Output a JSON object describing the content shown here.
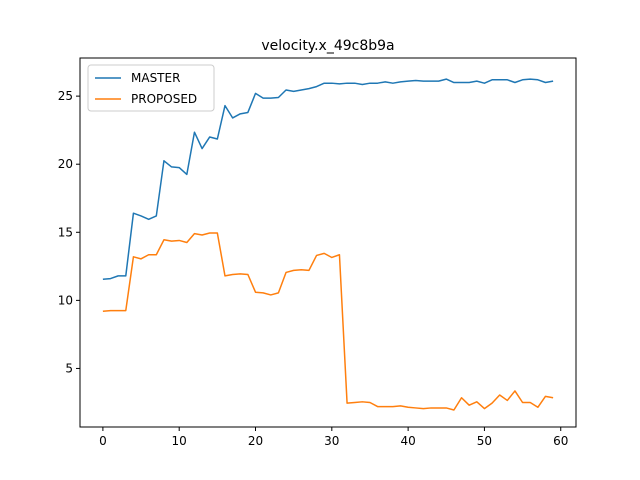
{
  "chart_data": {
    "type": "line",
    "title": "velocity.x_49c8b9a",
    "xlabel": "",
    "ylabel": "",
    "xlim": [
      -3.0,
      62.0
    ],
    "ylim": [
      0.7,
      27.8
    ],
    "xticks": [
      0,
      10,
      20,
      30,
      40,
      50,
      60
    ],
    "yticks": [
      5,
      10,
      15,
      20,
      25
    ],
    "grid": false,
    "legend_position": "upper-left",
    "series": [
      {
        "name": "MASTER",
        "color": "#1f77b4",
        "x": [
          0,
          1,
          2,
          3,
          4,
          5,
          6,
          7,
          8,
          9,
          10,
          11,
          12,
          13,
          14,
          15,
          16,
          17,
          18,
          19,
          20,
          21,
          22,
          23,
          24,
          25,
          26,
          27,
          28,
          29,
          30,
          31,
          32,
          33,
          34,
          35,
          36,
          37,
          38,
          39,
          40,
          41,
          42,
          43,
          44,
          45,
          46,
          47,
          48,
          49,
          50,
          51,
          52,
          53,
          54,
          55,
          56,
          57,
          58,
          59
        ],
        "values": [
          11.55,
          11.6,
          11.8,
          11.8,
          16.4,
          16.2,
          15.95,
          16.2,
          20.25,
          19.8,
          19.75,
          19.25,
          22.35,
          21.15,
          22.0,
          21.85,
          24.3,
          23.4,
          23.7,
          23.8,
          25.2,
          24.85,
          24.85,
          24.9,
          25.45,
          25.35,
          25.45,
          25.55,
          25.7,
          25.95,
          25.95,
          25.9,
          25.95,
          25.95,
          25.85,
          25.95,
          25.95,
          26.05,
          25.95,
          26.05,
          26.1,
          26.15,
          26.1,
          26.1,
          26.1,
          26.25,
          26.0,
          26.0,
          26.0,
          26.1,
          25.95,
          26.2,
          26.2,
          26.2,
          26.0,
          26.2,
          26.25,
          26.2,
          26.0,
          26.1
        ]
      },
      {
        "name": "PROPOSED",
        "color": "#ff7f0e",
        "x": [
          0,
          1,
          2,
          3,
          4,
          5,
          6,
          7,
          8,
          9,
          10,
          11,
          12,
          13,
          14,
          15,
          16,
          17,
          18,
          19,
          20,
          21,
          22,
          23,
          24,
          25,
          26,
          27,
          28,
          29,
          30,
          31,
          32,
          33,
          34,
          35,
          36,
          37,
          38,
          39,
          40,
          41,
          42,
          43,
          44,
          45,
          46,
          47,
          48,
          49,
          50,
          51,
          52,
          53,
          54,
          55,
          56,
          57,
          58,
          59
        ],
        "values": [
          9.2,
          9.25,
          9.25,
          9.25,
          13.2,
          13.05,
          13.35,
          13.35,
          14.45,
          14.35,
          14.4,
          14.25,
          14.9,
          14.8,
          14.95,
          14.95,
          11.8,
          11.9,
          11.95,
          11.9,
          10.6,
          10.55,
          10.4,
          10.55,
          12.05,
          12.2,
          12.25,
          12.2,
          13.3,
          13.45,
          13.15,
          13.35,
          2.45,
          2.5,
          2.55,
          2.5,
          2.2,
          2.2,
          2.2,
          2.25,
          2.15,
          2.1,
          2.05,
          2.1,
          2.1,
          2.1,
          1.95,
          2.85,
          2.3,
          2.55,
          2.05,
          2.45,
          3.05,
          2.65,
          3.35,
          2.5,
          2.5,
          2.15,
          2.95,
          2.85
        ]
      }
    ]
  }
}
